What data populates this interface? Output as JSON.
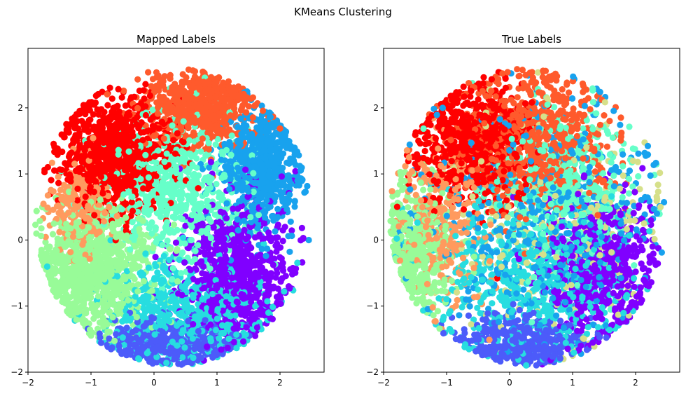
{
  "figure": {
    "suptitle": "KMeans Clustering"
  },
  "colors": {
    "red": "#ff0000",
    "orange_red": "#ff5a2c",
    "salmon": "#ff9a5e",
    "light_green": "#98fb98",
    "aquamarine": "#66ffc9",
    "cyan": "#27dde0",
    "sky_blue": "#18a2ee",
    "royal_blue": "#4c5bfa",
    "violet": "#8000ff",
    "khaki": "#d6e08a"
  },
  "chart_data": [
    {
      "type": "scatter",
      "title": "Mapped Labels",
      "xlabel": "",
      "ylabel": "",
      "xlim": [
        -2.0,
        2.7
      ],
      "ylim": [
        -2.0,
        2.9
      ],
      "xticks": [
        -2,
        -1,
        0,
        1,
        2
      ],
      "yticks": [
        -2,
        -1,
        0,
        1,
        2
      ],
      "xtick_labels": [
        "−2",
        "−1",
        "0",
        "1",
        "2"
      ],
      "ytick_labels": [
        "−2",
        "−1",
        "0",
        "1",
        "2"
      ],
      "grid": false,
      "legend": null,
      "clusters": [
        {
          "color": "#ff0000",
          "cx": -0.6,
          "cy": 1.3,
          "sx": 0.45,
          "sy": 0.45,
          "n": 900
        },
        {
          "color": "#ff5a2c",
          "cx": 0.7,
          "cy": 2.0,
          "sx": 0.45,
          "sy": 0.28,
          "n": 650
        },
        {
          "color": "#ff9a5e",
          "cx": -1.15,
          "cy": 0.55,
          "sx": 0.25,
          "sy": 0.35,
          "n": 250
        },
        {
          "color": "#98fb98",
          "cx": -0.95,
          "cy": -0.45,
          "sx": 0.45,
          "sy": 0.45,
          "n": 950
        },
        {
          "color": "#66ffc9",
          "cx": 0.35,
          "cy": 0.8,
          "sx": 0.55,
          "sy": 0.55,
          "n": 600
        },
        {
          "color": "#18a2ee",
          "cx": 1.7,
          "cy": 1.1,
          "sx": 0.35,
          "sy": 0.45,
          "n": 650
        },
        {
          "color": "#8000ff",
          "cx": 1.3,
          "cy": -0.45,
          "sx": 0.45,
          "sy": 0.55,
          "n": 800
        },
        {
          "color": "#27dde0",
          "cx": 0.55,
          "cy": -1.1,
          "sx": 0.65,
          "sy": 0.4,
          "n": 650
        },
        {
          "color": "#4c5bfa",
          "cx": 0.25,
          "cy": -1.55,
          "sx": 0.5,
          "sy": 0.18,
          "n": 450
        }
      ]
    },
    {
      "type": "scatter",
      "title": "True Labels",
      "xlabel": "",
      "ylabel": "",
      "xlim": [
        -2.0,
        2.7
      ],
      "ylim": [
        -2.0,
        2.9
      ],
      "xticks": [
        -2,
        -1,
        0,
        1,
        2
      ],
      "yticks": [
        -2,
        -1,
        0,
        1,
        2
      ],
      "xtick_labels": [
        "−2",
        "−1",
        "0",
        "1",
        "2"
      ],
      "ytick_labels": [
        "−2",
        "−1",
        "0",
        "1",
        "2"
      ],
      "grid": false,
      "legend": null,
      "clusters": [
        {
          "color": "#ff0000",
          "cx": -0.5,
          "cy": 1.4,
          "sx": 0.45,
          "sy": 0.45,
          "n": 800
        },
        {
          "color": "#ff5a2c",
          "cx": 0.4,
          "cy": 1.5,
          "sx": 0.6,
          "sy": 0.55,
          "n": 750
        },
        {
          "color": "#ff9a5e",
          "cx": -1.05,
          "cy": 0.2,
          "sx": 0.4,
          "sy": 0.6,
          "n": 300
        },
        {
          "color": "#98fb98",
          "cx": -1.5,
          "cy": -0.1,
          "sx": 0.3,
          "sy": 0.5,
          "n": 400
        },
        {
          "color": "#66ffc9",
          "cx": 0.8,
          "cy": 0.8,
          "sx": 0.6,
          "sy": 0.6,
          "n": 450
        },
        {
          "color": "#18a2ee",
          "cx": 0.6,
          "cy": 0.3,
          "sx": 0.9,
          "sy": 0.9,
          "n": 600
        },
        {
          "color": "#d6e08a",
          "cx": 0.9,
          "cy": 0.2,
          "sx": 0.8,
          "sy": 0.8,
          "n": 300
        },
        {
          "color": "#27dde0",
          "cx": 0.4,
          "cy": -0.6,
          "sx": 0.8,
          "sy": 0.65,
          "n": 650
        },
        {
          "color": "#8000ff",
          "cx": 1.4,
          "cy": -0.4,
          "sx": 0.45,
          "sy": 0.55,
          "n": 650
        },
        {
          "color": "#4c5bfa",
          "cx": 0.2,
          "cy": -1.55,
          "sx": 0.5,
          "sy": 0.2,
          "n": 450
        }
      ]
    }
  ]
}
